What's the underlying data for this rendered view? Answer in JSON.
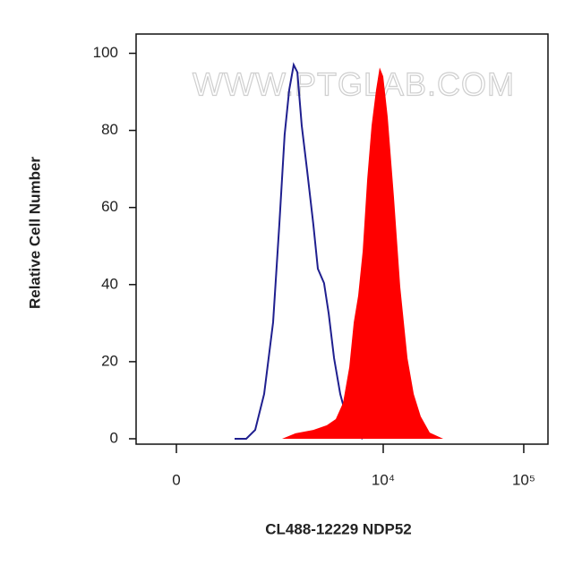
{
  "chart_data": {
    "type": "histogram-overlay",
    "xlabel": "CL488-12229 NDP52",
    "ylabel": "Relative Cell Number",
    "watermark": "WWW.PTGLAB.COM",
    "xscale": "asinh",
    "xlim": [
      -480,
      148700
    ],
    "xticks": [
      0,
      {
        "value": 10000,
        "label": "10⁴"
      },
      {
        "value": 100000,
        "label": "10⁵"
      }
    ],
    "ylim": [
      -1.4,
      105
    ],
    "yticks": [
      0,
      20,
      40,
      60,
      80,
      100
    ],
    "series": [
      {
        "color": "#1f1f8f",
        "filled": false,
        "x": [
          747,
          955,
          1137,
          1344,
          1579,
          1764,
          1935,
          2094,
          2262,
          2406,
          2595,
          2839,
          3151,
          3398,
          3771,
          4069,
          4448,
          4929,
          5558,
          6161,
          7142
        ],
        "values": [
          0,
          0,
          2.3,
          11.6,
          30.2,
          55.7,
          78.9,
          90.5,
          97,
          95.1,
          81.2,
          69.6,
          55.7,
          44.1,
          40.4,
          32.5,
          20.9,
          11.6,
          4.6,
          1.2,
          0
        ]
      },
      {
        "color": "#ff0000",
        "filled": true,
        "x": [
          1850,
          2331,
          3151,
          3945,
          4580,
          5160,
          5723,
          6161,
          6628,
          7142,
          7684,
          8266,
          8896,
          9431,
          10000,
          10764,
          11935,
          13229,
          14880,
          16500,
          18516,
          21460,
          26740,
          30940
        ],
        "values": [
          0,
          1.4,
          2.3,
          3.5,
          5.1,
          9.3,
          18.6,
          30.2,
          37.1,
          48.7,
          67.3,
          81.2,
          90.5,
          96.3,
          94,
          83.5,
          62.6,
          39.4,
          20.9,
          11.6,
          5.8,
          1.6,
          0,
          0
        ]
      }
    ]
  }
}
